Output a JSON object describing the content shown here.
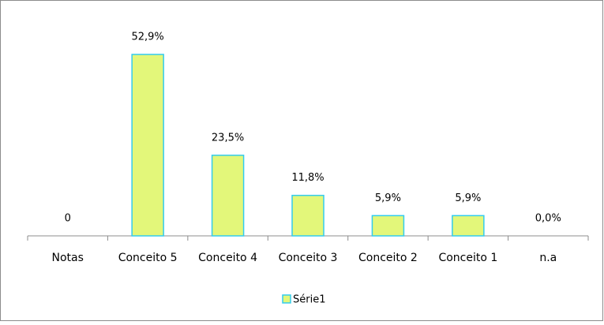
{
  "chart_data": {
    "type": "bar",
    "categories": [
      "Notas",
      "Conceito 5",
      "Conceito 4",
      "Conceito 3",
      "Conceito 2",
      "Conceito 1",
      "n.a"
    ],
    "series": [
      {
        "name": "Série1",
        "color": "#e3f77a",
        "edgecolor": "#33ccee",
        "values": [
          0,
          52.9,
          23.5,
          11.8,
          5.9,
          5.9,
          0
        ],
        "value_labels": [
          "0",
          "52,9%",
          "23,5%",
          "11,8%",
          "5,9%",
          "5,9%",
          "0,0%"
        ]
      }
    ],
    "legend": "bottom"
  }
}
